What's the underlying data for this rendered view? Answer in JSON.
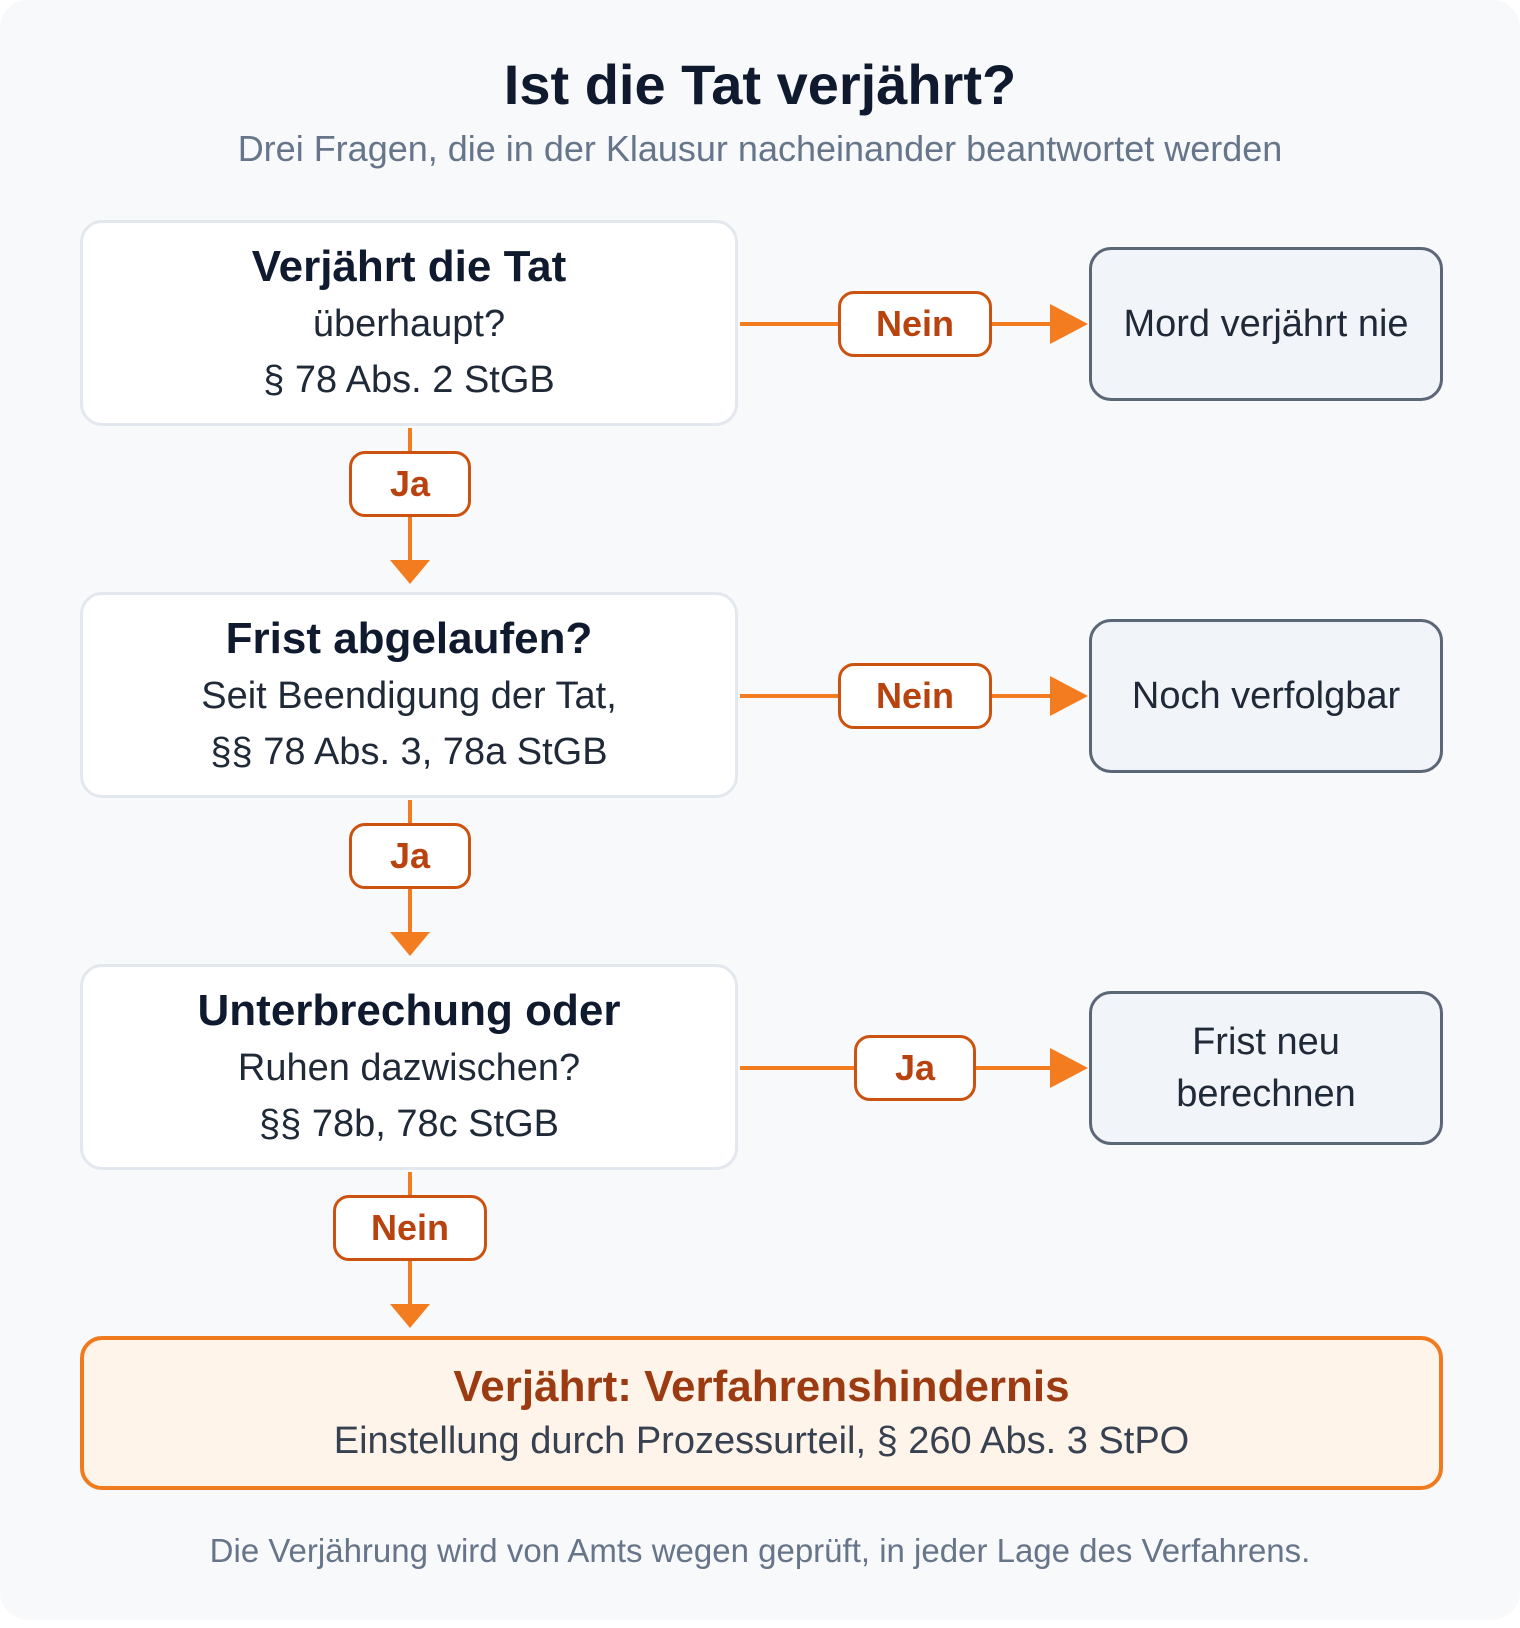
{
  "header": {
    "title": "Ist die Tat verjährt?",
    "subtitle": "Drei Fragen, die in der Klausur nacheinander beantwortet werden"
  },
  "questions": [
    {
      "title": "Verjährt die Tat",
      "line1": "überhaupt?",
      "line2": "§ 78 Abs. 2 StGB"
    },
    {
      "title": "Frist abgelaufen?",
      "line1": "Seit Beendigung der Tat,",
      "line2": "§§ 78 Abs. 3, 78a StGB"
    },
    {
      "title": "Unterbrechung oder",
      "line1": "Ruhen dazwischen?",
      "line2": "§§ 78b, 78c StGB"
    }
  ],
  "outcomes": [
    {
      "branch_label": "Nein",
      "text": "Mord verjährt nie"
    },
    {
      "branch_label": "Nein",
      "text": "Noch verfolgbar"
    },
    {
      "branch_label": "Ja",
      "text": "Frist neu berechnen"
    }
  ],
  "down_labels": [
    "Ja",
    "Ja",
    "Nein"
  ],
  "final": {
    "title": "Verjährt: Verfahrenshindernis",
    "subtitle": "Einstellung durch Prozessurteil, § 260 Abs. 3 StPO"
  },
  "footer": "Die Verjährung wird von Amts wegen geprüft, in jeder Lage des Verfahrens.",
  "colors": {
    "accent": "#f07a1e",
    "label_text": "#b8430e",
    "outcome_border": "#5b6677"
  }
}
